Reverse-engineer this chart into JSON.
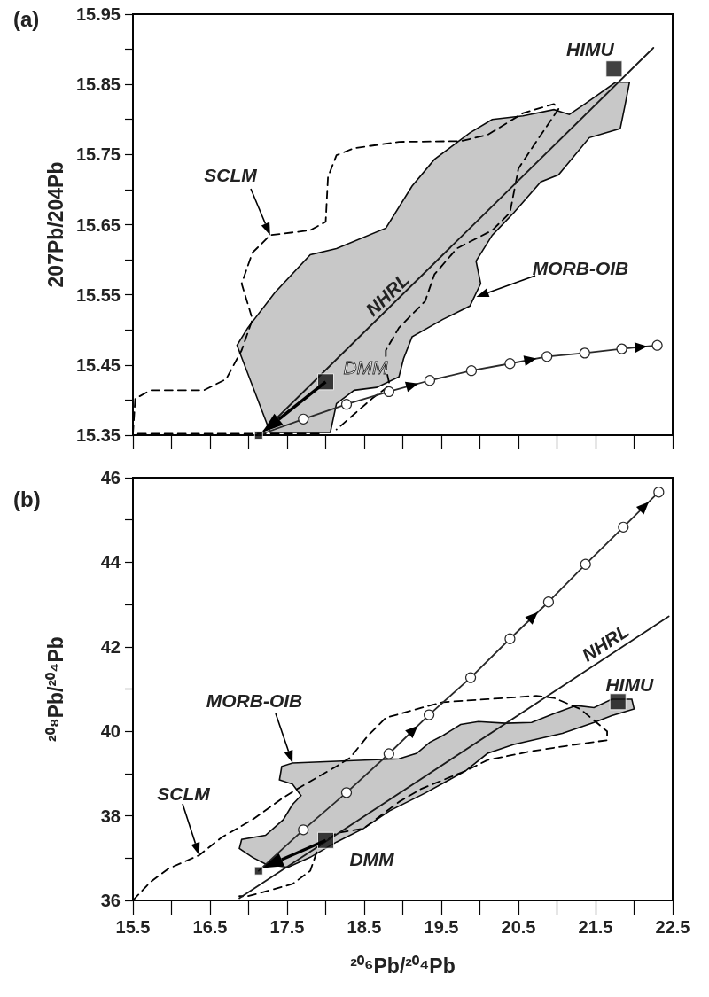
{
  "chart_data": [
    {
      "type": "line",
      "title": "(a)",
      "ylabel": "207Pb/204Pb",
      "xlim": [
        15.5,
        22.5
      ],
      "ylim": [
        15.35,
        15.95
      ],
      "tick_labels": "y",
      "xticks": [
        15.5,
        16,
        16.5,
        17,
        17.5,
        18,
        18.5,
        19,
        19.5,
        20,
        20.5,
        21,
        21.5,
        22,
        22.5
      ],
      "yticks": [
        15.35,
        {
          "value": 15.4,
          "label": null
        },
        15.45,
        {
          "value": 15.5,
          "label": null
        },
        15.55,
        {
          "value": 15.6,
          "label": null
        },
        15.65,
        {
          "value": 15.7,
          "label": null
        },
        15.75,
        {
          "value": 15.8,
          "label": null
        },
        15.85,
        {
          "value": 15.9,
          "label": null
        },
        15.95
      ],
      "annotations": [
        {
          "text": "HIMU",
          "x": 21.74,
          "y": 15.872
        },
        {
          "text": "DMM",
          "x": 18.0,
          "y": 15.426
        },
        {
          "text": "SCLM",
          "x": 17.28,
          "y": 15.635
        },
        "MORB-OIB",
        {
          "text": "NHRL",
          "x": 18.8,
          "y": 15.529
        }
      ],
      "series": [
        {
          "type": "area",
          "color": "#c8c8c8",
          "x": [
            17.28,
            16.85,
            16.99,
            17.34,
            17.8,
            18.14,
            18.78,
            19.12,
            19.41,
            19.87,
            20.16,
            20.56,
            20.96,
            21.16,
            21.36,
            21.76,
            21.94,
            21.88,
            21.82,
            21.42,
            21.02,
            20.79,
            20.44,
            20.16,
            19.95,
            20.01,
            19.87,
            19.52,
            19.12,
            19.01,
            18.95,
            18.66,
            18.37,
            18.14,
            18.06
          ],
          "values": [
            15.354,
            15.478,
            15.503,
            15.553,
            15.607,
            15.616,
            15.645,
            15.705,
            15.743,
            15.781,
            15.8,
            15.805,
            15.814,
            15.807,
            15.822,
            15.853,
            15.853,
            15.819,
            15.787,
            15.774,
            15.721,
            15.711,
            15.667,
            15.635,
            15.598,
            15.566,
            15.534,
            15.515,
            15.49,
            15.459,
            15.433,
            15.418,
            15.414,
            15.395,
            15.354
          ]
        },
        {
          "color": "#000000",
          "line_style": "dashed",
          "x": [
            17.91,
            15.5,
            15.53,
            15.73,
            16.42,
            16.71,
            16.91,
            17.05,
            16.91,
            17.05,
            17.28,
            17.8,
            18.0,
            18.03,
            18.14,
            18.37,
            18.95,
            19.75,
            20.1,
            20.56,
            20.96,
            21.02,
            20.73,
            20.5,
            20.39,
            20.16,
            19.7,
            19.41,
            19.29,
            18.95,
            18.78,
            18.78,
            18.83,
            18.6,
            18.37,
            18.14
          ],
          "values": [
            15.352,
            15.352,
            15.402,
            15.414,
            15.414,
            15.43,
            15.471,
            15.515,
            15.566,
            15.61,
            15.635,
            15.642,
            15.654,
            15.718,
            15.749,
            15.759,
            15.768,
            15.769,
            15.778,
            15.809,
            15.822,
            15.815,
            15.768,
            15.73,
            15.667,
            15.642,
            15.616,
            15.579,
            15.541,
            15.503,
            15.471,
            15.446,
            15.421,
            15.402,
            15.38,
            15.358
          ]
        },
        {
          "color": "#1a1a1a",
          "x": [
            17.14,
            22.25
          ],
          "values": [
            15.35,
            15.902
          ]
        },
        {
          "color": "#2a2a2a",
          "marker": "circle",
          "x": [
            17.13,
            17.71,
            18.27,
            18.82,
            19.35,
            19.89,
            20.39,
            20.87,
            21.36,
            21.84,
            22.3
          ],
          "values": [
            15.35,
            15.373,
            15.394,
            15.412,
            15.428,
            15.442,
            15.452,
            15.462,
            15.467,
            15.473,
            15.478
          ]
        },
        {
          "type": "scatter",
          "color": "#111111",
          "marker": "square",
          "x": [
            21.74,
            18.0
          ],
          "values": [
            15.872,
            15.426
          ]
        },
        {
          "type": "scatter",
          "color": "#080808",
          "marker": "square",
          "x": [
            17.13
          ],
          "values": [
            15.35
          ]
        }
      ]
    },
    {
      "type": "line",
      "title": "(b)",
      "xlabel": "²⁰⁶Pb/²⁰⁴Pb",
      "ylabel": "²⁰⁸Pb/²⁰⁴Pb",
      "xlim": [
        15.5,
        22.5
      ],
      "ylim": [
        36,
        46
      ],
      "xticks": [
        15.5,
        {
          "value": 16,
          "label": null
        },
        16.5,
        {
          "value": 17,
          "label": null
        },
        17.5,
        {
          "value": 18,
          "label": null
        },
        18.5,
        {
          "value": 19,
          "label": null
        },
        19.5,
        {
          "value": 20,
          "label": null
        },
        20.5,
        {
          "value": 21,
          "label": null
        },
        21.5,
        {
          "value": 22,
          "label": null
        },
        22.5
      ],
      "yticks": [
        36,
        {
          "value": 37,
          "label": null
        },
        38,
        {
          "value": 39,
          "label": null
        },
        40,
        {
          "value": 41,
          "label": null
        },
        42,
        {
          "value": 43,
          "label": null
        },
        44,
        {
          "value": 45,
          "label": null
        },
        46
      ],
      "annotations": [
        {
          "text": "HIMU",
          "x": 21.79,
          "y": 40.7
        },
        {
          "text": "DMM",
          "x": 18.0,
          "y": 37.42
        },
        {
          "text": "SCLM",
          "x": 16.36,
          "y": 37.07
        },
        {
          "text": "MORB-OIB",
          "x": 17.57,
          "y": 39.25
        },
        {
          "text": "NHRL",
          "x": 21.65,
          "y": 41.8
        }
      ],
      "series": [
        {
          "type": "area",
          "color": "#c8c8c8",
          "x": [
            16.88,
            16.91,
            17.22,
            17.45,
            17.57,
            17.68,
            17.57,
            17.4,
            17.43,
            17.57,
            18.14,
            18.95,
            19.18,
            19.35,
            19.52,
            19.75,
            19.98,
            20.33,
            20.67,
            20.96,
            21.25,
            21.48,
            21.71,
            21.97,
            22.0,
            21.71,
            21.48,
            21.07,
            20.44,
            20.1,
            19.81,
            19.29,
            18.83,
            18.49,
            18.14,
            17.8,
            17.51,
            17.22,
            17.05
          ],
          "values": [
            37.23,
            37.44,
            37.54,
            37.91,
            38.27,
            38.48,
            38.75,
            38.85,
            39.17,
            39.25,
            39.29,
            39.35,
            39.48,
            39.74,
            39.9,
            40.16,
            40.23,
            40.19,
            40.21,
            40.42,
            40.61,
            40.56,
            40.76,
            40.76,
            40.53,
            40.37,
            40.21,
            39.95,
            39.69,
            39.48,
            39.06,
            38.54,
            38.12,
            37.7,
            37.38,
            37.02,
            36.78,
            36.86,
            37.02
          ]
        },
        {
          "color": "#000000",
          "line_style": "dashed",
          "x": [
            15.5,
            15.73,
            15.96,
            16.36,
            16.65,
            17.05,
            17.45,
            17.68,
            18.14,
            18.32,
            18.55,
            18.78,
            19.29,
            19.52,
            20.1,
            20.73,
            20.96,
            21.3,
            21.65,
            21.65,
            21.25,
            20.67,
            20.1,
            19.81,
            19.24,
            18.95,
            18.49,
            18.14,
            17.91,
            17.8,
            17.57,
            17.22,
            16.99,
            16.88
          ],
          "values": [
            36.0,
            36.44,
            36.75,
            37.07,
            37.49,
            37.91,
            38.43,
            38.69,
            39.17,
            39.38,
            39.9,
            40.32,
            40.58,
            40.69,
            40.76,
            40.84,
            40.79,
            40.53,
            40.0,
            39.79,
            39.69,
            39.53,
            39.32,
            39.06,
            38.64,
            38.33,
            37.7,
            37.59,
            37.28,
            36.7,
            36.39,
            36.21,
            36.1,
            36.1
          ]
        },
        {
          "color": "#1a1a1a",
          "x": [
            16.88,
            22.45
          ],
          "values": [
            36.05,
            42.72
          ]
        },
        {
          "color": "#2a2a2a",
          "marker": "circle",
          "x": [
            17.13,
            17.71,
            18.27,
            18.82,
            19.34,
            19.88,
            20.39,
            20.89,
            21.37,
            21.86,
            22.32
          ],
          "values": [
            36.7,
            37.67,
            38.55,
            39.47,
            40.39,
            41.27,
            42.19,
            43.06,
            43.95,
            44.83,
            45.66
          ]
        },
        {
          "type": "scatter",
          "color": "#111111",
          "marker": "square",
          "x": [
            21.79,
            18.0
          ],
          "values": [
            40.7,
            37.42
          ]
        },
        {
          "type": "scatter",
          "color": "#080808",
          "marker": "square",
          "x": [
            17.13
          ],
          "values": [
            36.7
          ]
        }
      ]
    }
  ]
}
